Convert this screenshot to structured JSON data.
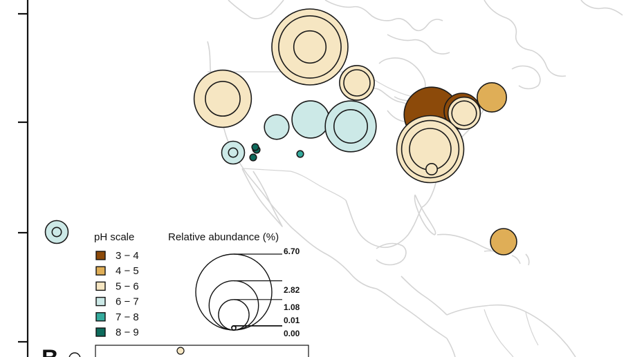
{
  "ph_legend": {
    "title": "pH scale",
    "classes": [
      {
        "label": "3 − 4",
        "color": "#8c4a0a"
      },
      {
        "label": "4 − 5",
        "color": "#dfae57"
      },
      {
        "label": "5 − 6",
        "color": "#f6e6c2"
      },
      {
        "label": "6 − 7",
        "color": "#cce9e7"
      },
      {
        "label": "7 − 8",
        "color": "#35ab9d"
      },
      {
        "label": "8 − 9",
        "color": "#0d6b5c"
      }
    ]
  },
  "size_legend": {
    "title": "Relative abundance (%)",
    "values": [
      "6.70",
      "2.82",
      "1.08",
      "0.01",
      "0.00"
    ]
  },
  "panel_label": "B",
  "sites": [
    {
      "ph_class": 2,
      "rings": [
        6.7,
        4.5,
        1.2
      ]
    },
    {
      "ph_class": 2,
      "rings": [
        3.8,
        1.4
      ]
    },
    {
      "ph_class": 2,
      "rings": [
        1.4,
        0.8
      ]
    },
    {
      "ph_class": 3,
      "rings": [
        1.6
      ]
    },
    {
      "ph_class": 3,
      "rings": [
        0.7
      ]
    },
    {
      "ph_class": 4,
      "rings": [
        0.05
      ]
    },
    {
      "ph_class": 3,
      "rings": [
        3.0,
        1.3
      ]
    },
    {
      "ph_class": 3,
      "rings": [
        0.6,
        0.1
      ]
    },
    {
      "ph_class": 5,
      "rings": [
        0.05
      ]
    },
    {
      "ph_class": 4,
      "rings": [
        0.05
      ]
    },
    {
      "ph_class": 5,
      "rings": [
        0.05
      ]
    },
    {
      "ph_class": 5,
      "rings": [
        0.05
      ]
    },
    {
      "ph_class": 0,
      "rings": [
        3.5
      ]
    },
    {
      "ph_class": 0,
      "rings": [
        1.5
      ]
    },
    {
      "ph_class": 2,
      "rings": [
        1.2,
        0.7
      ]
    },
    {
      "ph_class": 1,
      "rings": [
        1.0
      ]
    },
    {
      "ph_class": 2,
      "rings": [
        5.2,
        3.8,
        2.0
      ]
    },
    {
      "ph_class": 3,
      "rings": [
        0.6,
        0.1
      ]
    },
    {
      "ph_class": 1,
      "rings": [
        0.8
      ]
    },
    {
      "ph_class": 2,
      "rings": [
        0.15
      ]
    }
  ]
}
